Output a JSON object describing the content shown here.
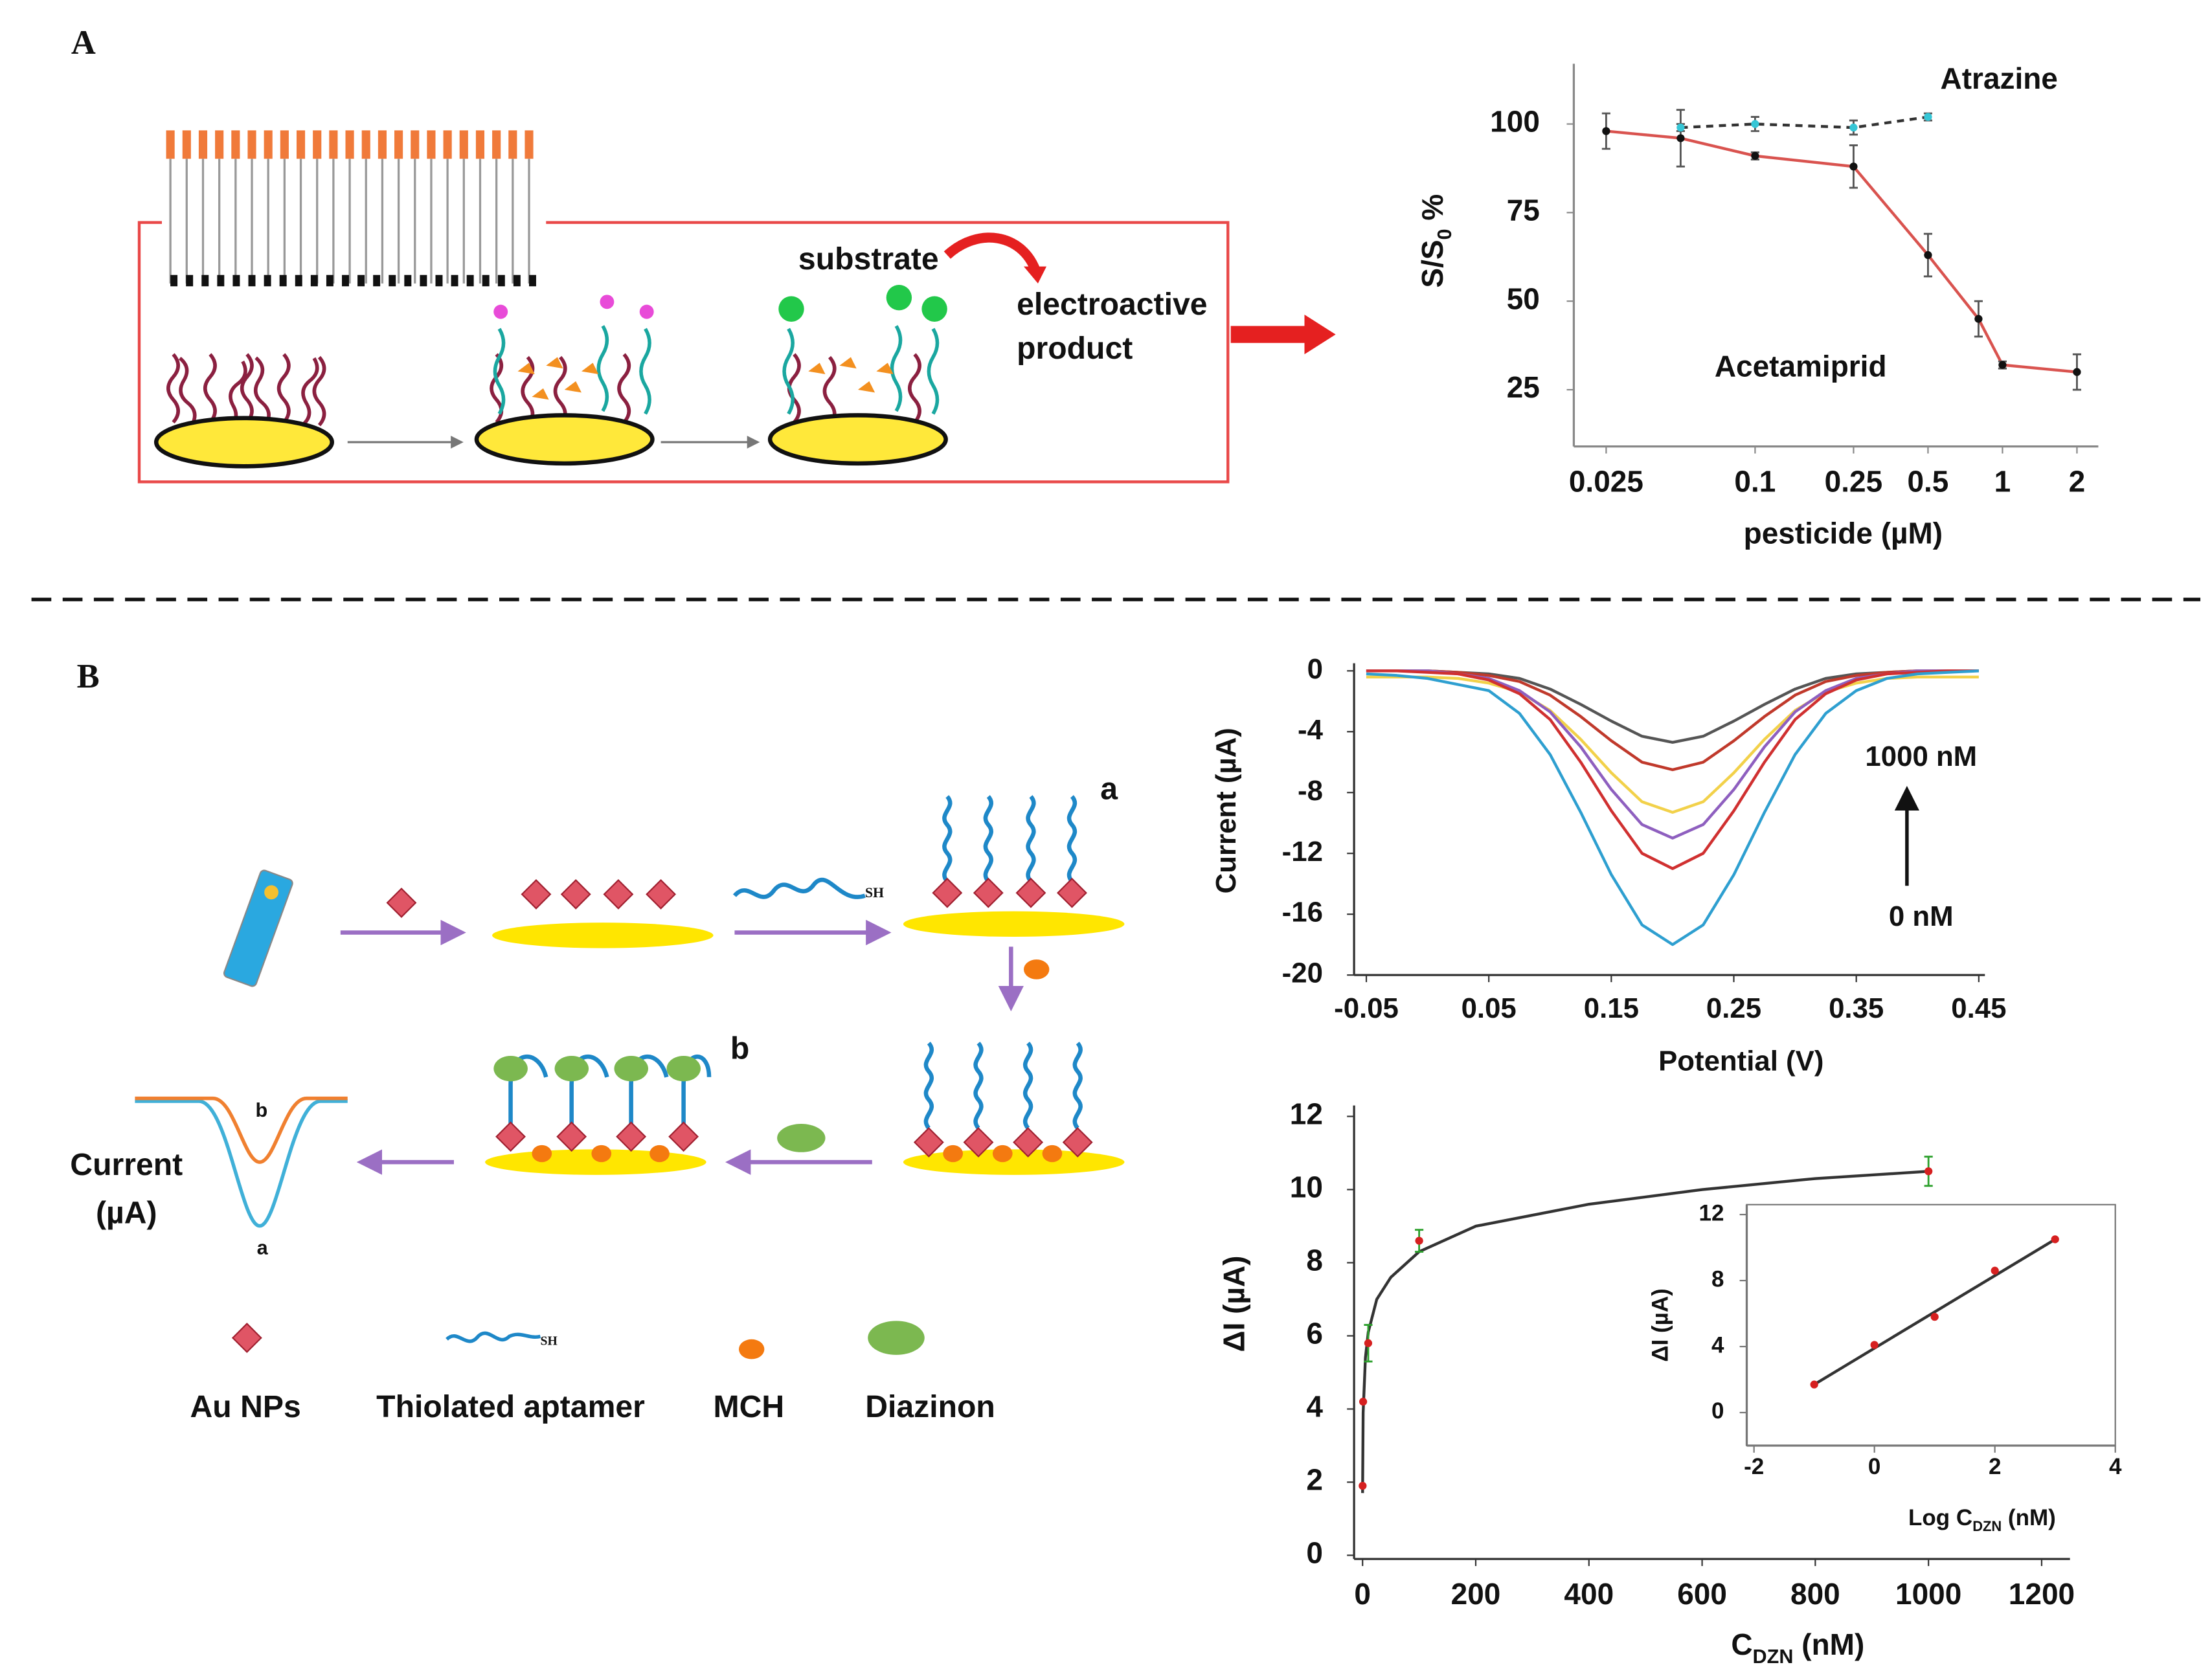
{
  "panel_labels": [
    "A",
    "B"
  ],
  "diagram_a": {
    "substrate": "substrate",
    "product": [
      "electroactive",
      "product"
    ]
  },
  "diagram_b": {
    "step_labels": [
      "a",
      "b"
    ],
    "sh": "SH",
    "plot_labels": [
      "b",
      "a"
    ],
    "plot_ylabel": [
      "Current",
      "(µA)"
    ],
    "legend": [
      "Au NPs",
      "Thiolated aptamer",
      "MCH",
      "Diazinon"
    ]
  },
  "chart_data": [
    {
      "type": "line",
      "xlog": true,
      "xlim": [
        0.0185,
        2.44
      ],
      "ylim": [
        9,
        117
      ],
      "xticks": [
        0.025,
        0.1,
        0.25,
        0.5,
        1,
        2
      ],
      "yticks": [
        25,
        50,
        75,
        100
      ],
      "xlabel": "pesticide (µM)",
      "ylabel": [
        "S/S",
        "0",
        " %"
      ],
      "annotations": [
        "Atrazine",
        "Acetamiprid"
      ],
      "series": [
        {
          "x": [
            0.025,
            0.05,
            0.1,
            0.25,
            0.5,
            0.8,
            1,
            2
          ],
          "values": [
            98,
            96,
            91,
            88,
            63,
            45,
            32,
            30
          ],
          "errors": [
            5,
            8,
            1,
            6,
            6,
            5,
            1,
            5
          ],
          "color": "#d9534f",
          "line": "solid",
          "marker_color": "#111111"
        },
        {
          "x": [
            0.05,
            0.1,
            0.25,
            0.5
          ],
          "values": [
            99,
            100,
            99,
            102
          ],
          "errors": [
            1,
            2,
            2,
            1
          ],
          "color": "#333333",
          "line": "dashed",
          "marker_color": "#35c6d6"
        }
      ]
    },
    {
      "type": "line",
      "xlim": [
        -0.06,
        0.455
      ],
      "ylim": [
        -20,
        0.5
      ],
      "xticks": [
        -0.05,
        0.05,
        0.15,
        0.25,
        0.35,
        0.45
      ],
      "yticks": [
        0,
        -4,
        -8,
        -12,
        -16,
        -20
      ],
      "xlabel": "Potential (V)",
      "ylabel": "Current (µA)",
      "annotations": [
        "1000 nM",
        "0 nM"
      ],
      "x": [
        -0.05,
        -0.025,
        0,
        0.025,
        0.05,
        0.075,
        0.1,
        0.125,
        0.15,
        0.175,
        0.2,
        0.225,
        0.25,
        0.275,
        0.3,
        0.325,
        0.35,
        0.375,
        0.4,
        0.425,
        0.45
      ],
      "series": [
        {
          "color": "#555555",
          "line": "solid",
          "values": [
            0,
            0,
            0,
            -0.1,
            -0.2,
            -0.5,
            -1.2,
            -2.2,
            -3.3,
            -4.3,
            -4.7,
            -4.3,
            -3.3,
            -2.2,
            -1.2,
            -0.5,
            -0.2,
            -0.1,
            0,
            0,
            0
          ]
        },
        {
          "color": "#c0392b",
          "line": "solid",
          "values": [
            0,
            0,
            0,
            -0.1,
            -0.3,
            -0.7,
            -1.6,
            -3.0,
            -4.6,
            -6.0,
            -6.5,
            -6.0,
            -4.6,
            -3.0,
            -1.6,
            -0.7,
            -0.3,
            -0.1,
            0,
            0,
            0
          ]
        },
        {
          "color": "#f2d14a",
          "line": "solid",
          "values": [
            -0.4,
            -0.4,
            -0.4,
            -0.5,
            -0.8,
            -1.4,
            -2.6,
            -4.5,
            -6.7,
            -8.6,
            -9.3,
            -8.6,
            -6.7,
            -4.5,
            -2.6,
            -1.4,
            -0.8,
            -0.5,
            -0.4,
            -0.4,
            -0.4
          ]
        },
        {
          "color": "#8e5fbf",
          "line": "solid",
          "values": [
            0,
            0,
            0,
            -0.2,
            -0.5,
            -1.3,
            -2.7,
            -5.0,
            -7.8,
            -10.1,
            -11,
            -10.1,
            -7.8,
            -5.0,
            -2.7,
            -1.3,
            -0.5,
            -0.2,
            0,
            0,
            0
          ]
        },
        {
          "color": "#d03030",
          "line": "solid",
          "values": [
            0,
            0,
            -0.1,
            -0.2,
            -0.6,
            -1.5,
            -3.2,
            -6.0,
            -9.2,
            -12.0,
            -13,
            -12.0,
            -9.2,
            -6.0,
            -3.2,
            -1.5,
            -0.6,
            -0.2,
            -0.1,
            0,
            0
          ]
        },
        {
          "color": "#2e9fd0",
          "line": "solid",
          "values": [
            -0.2,
            -0.3,
            -0.5,
            -0.9,
            -1.3,
            -2.8,
            -5.5,
            -9.3,
            -13.4,
            -16.7,
            -18,
            -16.7,
            -13.4,
            -9.3,
            -5.5,
            -2.8,
            -1.3,
            -0.5,
            -0.2,
            -0.1,
            0
          ]
        }
      ]
    },
    {
      "type": "scatter",
      "xlim": [
        -15,
        1250
      ],
      "ylim": [
        -0.1,
        12.3
      ],
      "xticks": [
        0,
        200,
        400,
        600,
        800,
        1000,
        1200
      ],
      "yticks": [
        0,
        2,
        4,
        6,
        8,
        10,
        12
      ],
      "xlabel": [
        "C",
        "DZN",
        " (nM)"
      ],
      "ylabel": "ΔI (µA)",
      "series": [
        {
          "x": [
            0.1,
            1,
            5,
            10,
            25,
            50,
            100,
            200,
            400,
            600,
            800,
            1000
          ],
          "values": [
            1.7,
            3.9,
            5.4,
            6.1,
            7.0,
            7.6,
            8.3,
            9.0,
            9.6,
            10.0,
            10.3,
            10.5
          ],
          "color": "#333333",
          "line": "solid"
        },
        {
          "x": [
            0.1,
            1,
            10,
            100,
            1000
          ],
          "values": [
            1.9,
            4.2,
            5.8,
            8.6,
            10.5
          ],
          "errors": [
            0,
            0,
            0.5,
            0.3,
            0.4
          ],
          "color": "#2ca02c",
          "line": "none",
          "marker_color": "#d62020"
        }
      ]
    },
    {
      "type": "scatter",
      "frame": true,
      "xlim": [
        -2.12,
        4
      ],
      "ylim": [
        -2,
        12.6
      ],
      "xticks": [
        -2,
        0,
        2,
        4
      ],
      "yticks": [
        0,
        4,
        8,
        12
      ],
      "xlabel": [
        "Log C",
        "DZN",
        " (nM)"
      ],
      "ylabel": "ΔI (µA)",
      "series": [
        {
          "x": [
            -1,
            3
          ],
          "values": [
            1.7,
            10.5
          ],
          "color": "#333333",
          "line": "solid"
        },
        {
          "x": [
            -1,
            0,
            1,
            2,
            3
          ],
          "values": [
            1.7,
            4.1,
            5.8,
            8.6,
            10.5
          ],
          "color": "#333333",
          "line": "none",
          "marker_color": "#d62020"
        }
      ]
    }
  ]
}
